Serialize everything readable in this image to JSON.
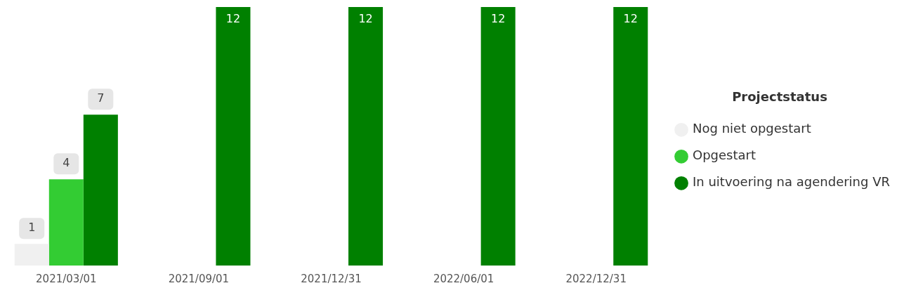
{
  "chart_data": {
    "type": "bar",
    "categories": [
      "2021/03/01",
      "2021/09/01",
      "2021/12/31",
      "2022/06/01",
      "2022/12/31"
    ],
    "series": [
      {
        "name": "Nog niet opgestart",
        "color": "#f0f0f0",
        "values": [
          1,
          null,
          null,
          null,
          null
        ]
      },
      {
        "name": "Opgestart",
        "color": "#33cc33",
        "values": [
          4,
          null,
          null,
          null,
          null
        ]
      },
      {
        "name": "In uitvoering na agendering VR",
        "color": "#008000",
        "values": [
          7,
          12,
          12,
          12,
          12
        ]
      }
    ],
    "ylim": [
      0,
      12
    ],
    "data_labels": true,
    "legend": "right",
    "legend_title": "Projectstatus",
    "tick_labels": "x",
    "grid": false
  }
}
